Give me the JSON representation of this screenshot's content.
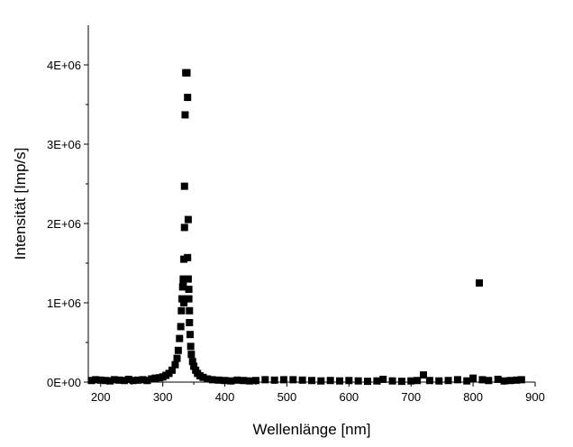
{
  "chart_data": {
    "type": "scatter",
    "title": "",
    "xlabel": "Wellenlänge [nm]",
    "ylabel": "Intensität [Imp/s]",
    "xlim": [
      180,
      900
    ],
    "ylim": [
      0,
      4500000
    ],
    "x_ticks": [
      200,
      300,
      400,
      500,
      600,
      700,
      800,
      900
    ],
    "x_tick_labels": [
      "200",
      "300",
      "400",
      "500",
      "600",
      "700",
      "800",
      "900"
    ],
    "y_ticks": [
      0,
      1000000,
      2000000,
      3000000,
      4000000
    ],
    "y_tick_labels": [
      "0E+00",
      "1E+06",
      "2E+06",
      "3E+06",
      "4E+06"
    ],
    "grid": false,
    "legend": "none",
    "marker": "square",
    "marker_color": "#000000",
    "series": [
      {
        "points": [
          [
            185,
            20000
          ],
          [
            192,
            30000
          ],
          [
            200,
            25000
          ],
          [
            208,
            20000
          ],
          [
            215,
            15000
          ],
          [
            222,
            30000
          ],
          [
            230,
            25000
          ],
          [
            238,
            20000
          ],
          [
            245,
            35000
          ],
          [
            252,
            20000
          ],
          [
            260,
            25000
          ],
          [
            268,
            30000
          ],
          [
            275,
            20000
          ],
          [
            282,
            40000
          ],
          [
            288,
            50000
          ],
          [
            295,
            55000
          ],
          [
            300,
            65000
          ],
          [
            305,
            85000
          ],
          [
            310,
            110000
          ],
          [
            315,
            150000
          ],
          [
            320,
            220000
          ],
          [
            323,
            300000
          ],
          [
            325,
            400000
          ],
          [
            327,
            550000
          ],
          [
            329,
            700000
          ],
          [
            330,
            900000
          ],
          [
            331,
            1050000
          ],
          [
            332,
            1200000
          ],
          [
            333,
            1250000
          ],
          [
            333,
            1300000
          ],
          [
            334,
            1000000
          ],
          [
            334,
            1550000
          ],
          [
            335,
            1950000
          ],
          [
            335,
            2470000
          ],
          [
            336,
            3370000
          ],
          [
            337,
            3900000
          ],
          [
            338,
            3900000
          ],
          [
            339,
            3900000
          ],
          [
            340,
            3590000
          ],
          [
            340,
            1570000
          ],
          [
            341,
            2050000
          ],
          [
            341,
            1300000
          ],
          [
            342,
            1170000
          ],
          [
            342,
            1050000
          ],
          [
            343,
            900000
          ],
          [
            343,
            750000
          ],
          [
            344,
            600000
          ],
          [
            345,
            450000
          ],
          [
            346,
            350000
          ],
          [
            348,
            260000
          ],
          [
            350,
            200000
          ],
          [
            353,
            150000
          ],
          [
            356,
            110000
          ],
          [
            360,
            80000
          ],
          [
            365,
            60000
          ],
          [
            372,
            40000
          ],
          [
            380,
            30000
          ],
          [
            390,
            25000
          ],
          [
            400,
            20000
          ],
          [
            410,
            15000
          ],
          [
            420,
            25000
          ],
          [
            430,
            20000
          ],
          [
            440,
            15000
          ],
          [
            450,
            20000
          ],
          [
            465,
            30000
          ],
          [
            480,
            25000
          ],
          [
            495,
            30000
          ],
          [
            510,
            30000
          ],
          [
            525,
            25000
          ],
          [
            540,
            20000
          ],
          [
            555,
            15000
          ],
          [
            570,
            20000
          ],
          [
            585,
            15000
          ],
          [
            600,
            20000
          ],
          [
            615,
            15000
          ],
          [
            630,
            10000
          ],
          [
            645,
            15000
          ],
          [
            655,
            35000
          ],
          [
            670,
            15000
          ],
          [
            685,
            10000
          ],
          [
            700,
            15000
          ],
          [
            710,
            20000
          ],
          [
            720,
            90000
          ],
          [
            730,
            20000
          ],
          [
            745,
            15000
          ],
          [
            760,
            20000
          ],
          [
            775,
            30000
          ],
          [
            790,
            15000
          ],
          [
            800,
            50000
          ],
          [
            810,
            1250000
          ],
          [
            815,
            30000
          ],
          [
            825,
            20000
          ],
          [
            840,
            35000
          ],
          [
            850,
            15000
          ],
          [
            860,
            20000
          ],
          [
            870,
            25000
          ],
          [
            878,
            30000
          ]
        ]
      }
    ]
  }
}
